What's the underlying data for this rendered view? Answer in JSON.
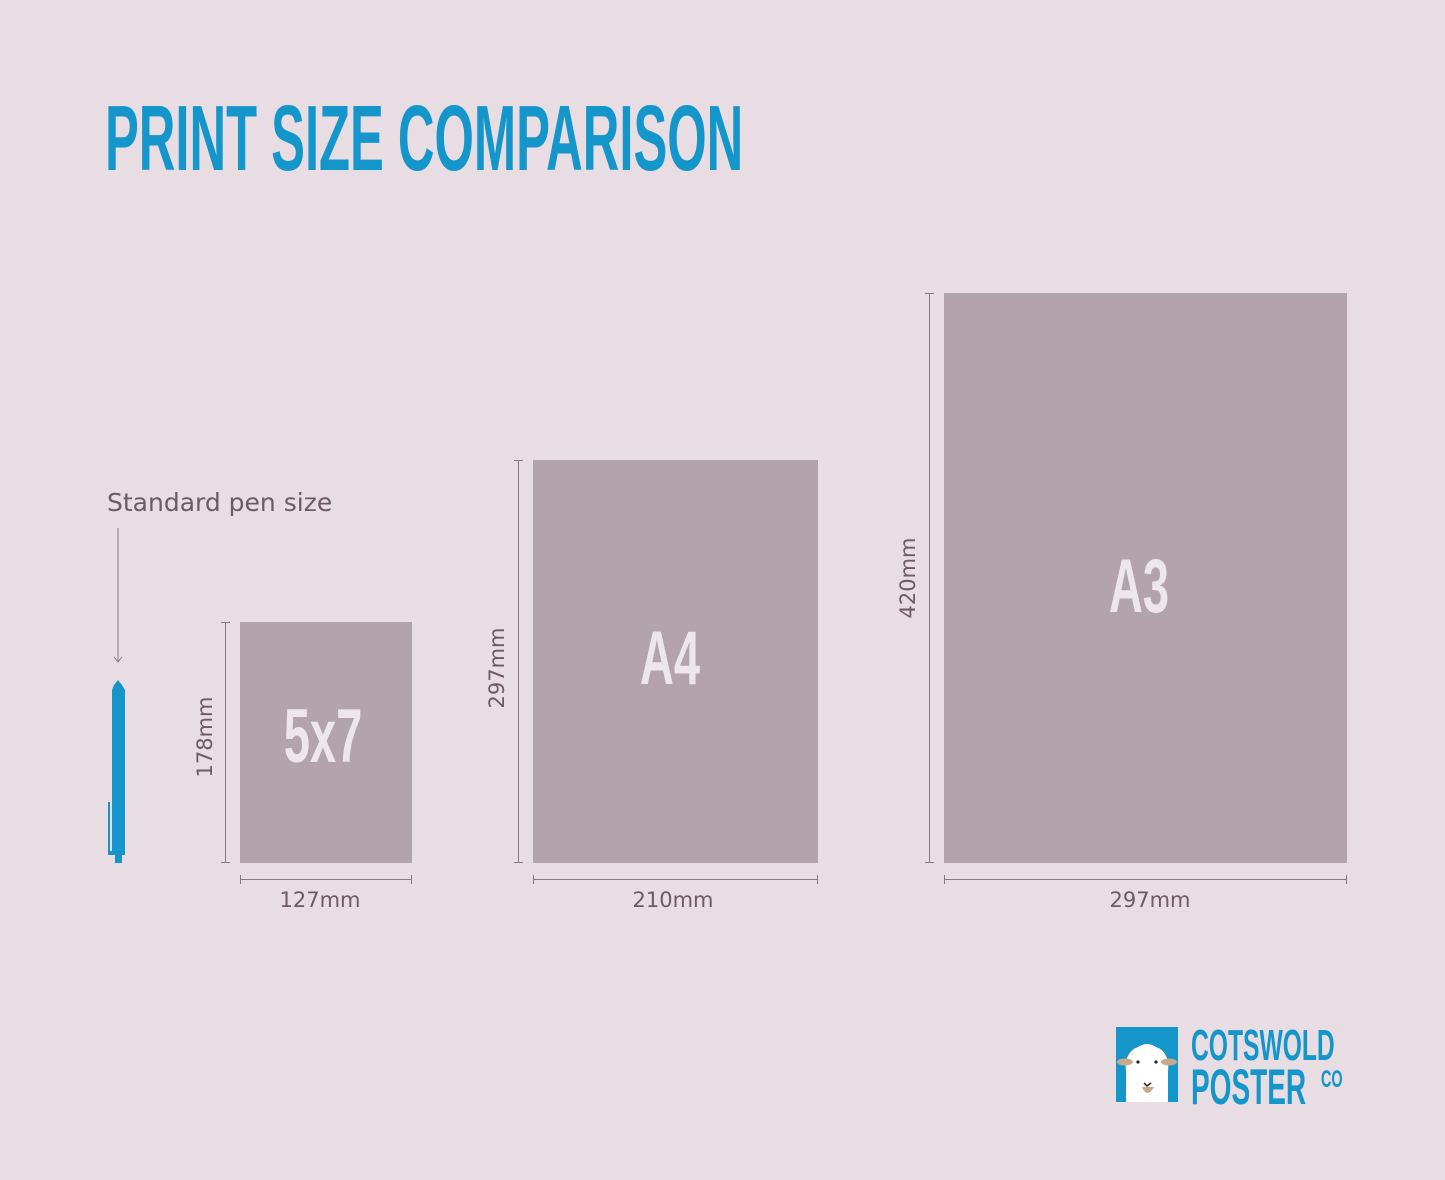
{
  "title": "PRINT SIZE COMPARISON",
  "pen_label": "Standard pen size",
  "sizes": [
    {
      "name": "5x7",
      "width": "127mm",
      "height": "178mm"
    },
    {
      "name": "A4",
      "width": "210mm",
      "height": "297mm"
    },
    {
      "name": "A3",
      "width": "297mm",
      "height": "420mm"
    }
  ],
  "logo": {
    "line1": "COTSWOLD",
    "line2": "POSTER",
    "suffix": "CO"
  },
  "colors": {
    "background": "#e7dde3",
    "accent": "#1496cb",
    "paper": "#b3a3aa",
    "text": "#6d5a63"
  }
}
